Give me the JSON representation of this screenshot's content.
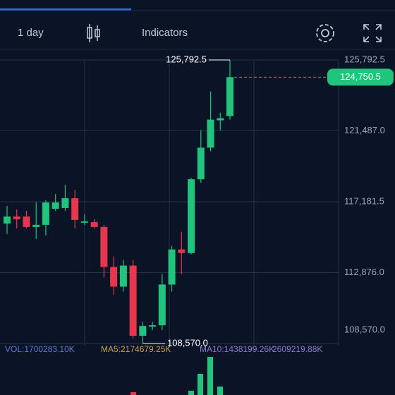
{
  "toolbar": {
    "interval": "1 day",
    "indicators": "Indicators"
  },
  "chart_data": {
    "type": "candlestick",
    "open": [
      115860,
      116286,
      116286,
      115647,
      115775,
      116755,
      116797,
      117394,
      115902,
      115945,
      115647,
      113217,
      112025,
      113302,
      109039,
      109593,
      109678,
      112152,
      114282,
      114069,
      118545,
      120464,
      122126,
      122382
    ],
    "high": [
      116925,
      116712,
      116627,
      117138,
      117266,
      117650,
      118204,
      117906,
      116414,
      116116,
      115775,
      113856,
      113643,
      113643,
      109891,
      109891,
      112791,
      114496,
      115349,
      118631,
      121530,
      123874,
      122595,
      125792.5
    ],
    "low": [
      115220,
      115561,
      115561,
      114922,
      115135,
      116627,
      116627,
      115561,
      115775,
      115561,
      112578,
      111511,
      111724,
      108868,
      108570,
      109380,
      109380,
      111724,
      112791,
      113984,
      118332,
      120251,
      121530,
      122169
    ],
    "close": [
      116286,
      116116,
      115647,
      115775,
      117138,
      117138,
      117394,
      116073,
      115988,
      115647,
      113217,
      112025,
      113302,
      109039,
      109635,
      109678,
      112152,
      114282,
      114069,
      118545,
      120464,
      122169,
      122254,
      124750.5
    ],
    "colors": {
      "up": "#1fc47d",
      "down": "#e9364d"
    },
    "ylim": [
      108570,
      125792.5
    ],
    "yticks": [
      {
        "value": 125792.5,
        "label": "125,792.5"
      },
      {
        "value": 121487,
        "label": "121,487.0"
      },
      {
        "value": 117181.5,
        "label": "117,181.5"
      },
      {
        "value": 112876,
        "label": "112,876.0"
      },
      {
        "value": 108570,
        "label": "108,570.0"
      }
    ],
    "grid": true,
    "last_price": {
      "value": 124750.5,
      "label": "124,750.5"
    },
    "max_label": {
      "value": 125792.5,
      "label": "125,792.5"
    },
    "min_label": {
      "value": 108570,
      "label": "108,570.0"
    }
  },
  "volume_panel": {
    "vol": "VOL:1700283.10K",
    "ma5": "MA5:2174679.25K",
    "ma10": "MA10:1438199.26K",
    "ma_overlap": "2609219.88K"
  }
}
